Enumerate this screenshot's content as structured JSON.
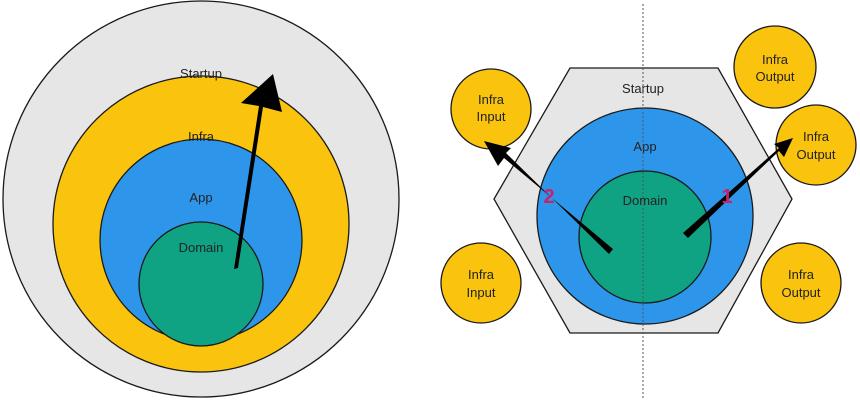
{
  "colors": {
    "startup": "#e6e6e6",
    "infra": "#f9c30e",
    "app": "#2e96ea",
    "domain": "#0fa384",
    "arrow": "#000000",
    "number": "#cc1f6a",
    "stroke": "#1a1a1a",
    "divider": "#555555"
  },
  "onion": {
    "startup_label": "Startup",
    "infra_label": "Infra",
    "app_label": "App",
    "domain_label": "Domain"
  },
  "hexagonal": {
    "startup_label": "Startup",
    "app_label": "App",
    "domain_label": "Domain",
    "arrow_1_number": "1",
    "arrow_2_number": "2",
    "infra_input_top": {
      "line1": "Infra",
      "line2": "Input"
    },
    "infra_input_bottom": {
      "line1": "Infra",
      "line2": "Input"
    },
    "infra_output_top": {
      "line1": "Infra",
      "line2": "Output"
    },
    "infra_output_mid": {
      "line1": "Infra",
      "line2": "Output"
    },
    "infra_output_bottom": {
      "line1": "Infra",
      "line2": "Output"
    }
  }
}
